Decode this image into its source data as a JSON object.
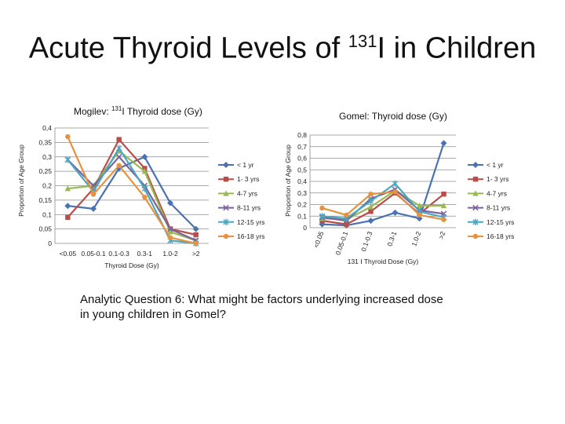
{
  "slide": {
    "title_main": "Acute Thyroid Levels of ",
    "title_sup": "131",
    "title_tail": "I in Children",
    "question": "Analytic Question 6: What might be factors underlying increased dose in young children in Gomel?"
  },
  "colors": {
    "< 1 yr": "#4a72b0",
    "1- 3 yrs": "#b84d4a",
    "4-7 yrs": "#98b954",
    "8-11 yrs": "#7b629b",
    "12-15 yrs": "#4aa6c1",
    "16-18 yrs": "#e6923e"
  },
  "chart_data": [
    {
      "type": "line",
      "title_pre": "Mogilev:  ",
      "title_sup": "131",
      "title_post": "I Thyroid dose (Gy)",
      "xlabel": "Thyroid Dose (Gy)",
      "ylabel": "Proportion of Age Group",
      "categories": [
        "<0.05",
        "0.05-0.1",
        "0.1-0.3",
        "0.3-1",
        "1.0-2",
        ">2"
      ],
      "yticks": [
        "0",
        "0,05",
        "0,1",
        "0,15",
        "0,2",
        "0,25",
        "0,3",
        "0,35",
        "0,4"
      ],
      "ylim": [
        0,
        0.4
      ],
      "legend_position": "right",
      "series": [
        {
          "name": "< 1 yr",
          "marker": "diamond",
          "values": [
            0.13,
            0.12,
            0.26,
            0.3,
            0.14,
            0.05
          ]
        },
        {
          "name": "1- 3 yrs",
          "marker": "square",
          "values": [
            0.09,
            0.19,
            0.36,
            0.26,
            0.05,
            0.03
          ]
        },
        {
          "name": "4-7 yrs",
          "marker": "triangle",
          "values": [
            0.19,
            0.2,
            0.32,
            0.25,
            0.04,
            0.01
          ]
        },
        {
          "name": "8-11 yrs",
          "marker": "x",
          "values": [
            0.29,
            0.2,
            0.3,
            0.2,
            0.05,
            0.01
          ]
        },
        {
          "name": "12-15 yrs",
          "marker": "star",
          "values": [
            0.29,
            0.18,
            0.33,
            0.19,
            0.01,
            0.0
          ]
        },
        {
          "name": "16-18 yrs",
          "marker": "circle",
          "values": [
            0.37,
            0.17,
            0.27,
            0.16,
            0.02,
            0.0
          ]
        }
      ]
    },
    {
      "type": "line",
      "title": "Gomel: Thyroid dose (Gy)",
      "xlabel": "131 I Thyroid Dose (Gy)",
      "ylabel": "Proportion of Age Group",
      "categories": [
        "<0.05",
        "0.05-0.1",
        "0.1-0.3",
        "0.3-1",
        "1.0-2",
        ">2"
      ],
      "yticks": [
        "0",
        "0,1",
        "0,2",
        "0,3",
        "0,4",
        "0,5",
        "0,6",
        "0,7",
        "0,8"
      ],
      "ylim": [
        0,
        0.8
      ],
      "legend_position": "right",
      "series": [
        {
          "name": "< 1 yr",
          "marker": "diamond",
          "values": [
            0.03,
            0.02,
            0.06,
            0.13,
            0.08,
            0.73
          ]
        },
        {
          "name": "1- 3 yrs",
          "marker": "square",
          "values": [
            0.06,
            0.03,
            0.14,
            0.3,
            0.12,
            0.29
          ]
        },
        {
          "name": "4-7 yrs",
          "marker": "triangle",
          "values": [
            0.08,
            0.07,
            0.18,
            0.32,
            0.19,
            0.19
          ]
        },
        {
          "name": "8-11 yrs",
          "marker": "x",
          "values": [
            0.09,
            0.06,
            0.25,
            0.33,
            0.15,
            0.12
          ]
        },
        {
          "name": "12-15 yrs",
          "marker": "star",
          "values": [
            0.1,
            0.08,
            0.23,
            0.38,
            0.14,
            0.09
          ]
        },
        {
          "name": "16-18 yrs",
          "marker": "circle",
          "values": [
            0.17,
            0.11,
            0.29,
            0.31,
            0.11,
            0.07
          ]
        }
      ]
    }
  ]
}
